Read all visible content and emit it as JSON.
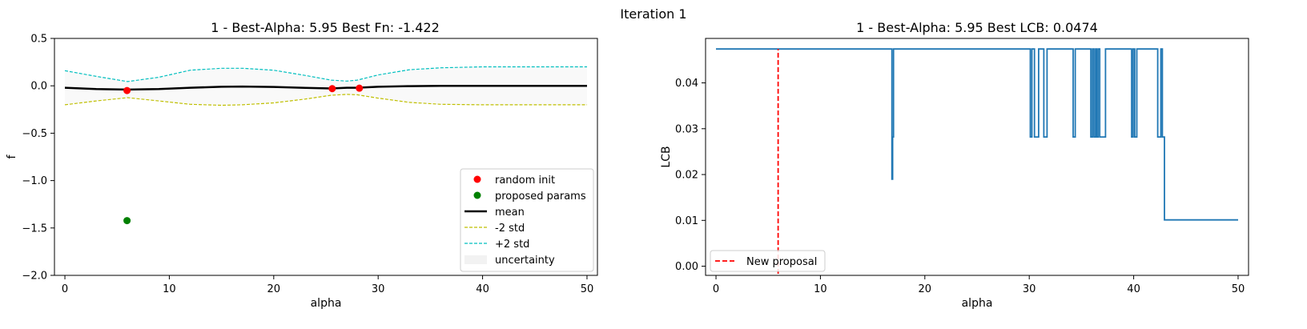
{
  "figure": {
    "suptitle": "Iteration 1"
  },
  "chart_data": [
    {
      "type": "line",
      "title": "1 - Best-Alpha: 5.95 Best Fn: -1.422",
      "xlabel": "alpha",
      "ylabel": "f",
      "xlim": [
        -1,
        51
      ],
      "ylim": [
        -2.0,
        0.5
      ],
      "xticks": [
        0,
        10,
        20,
        30,
        40,
        50
      ],
      "xtick_labels": [
        "0",
        "10",
        "20",
        "30",
        "40",
        "50"
      ],
      "yticks": [
        -2.0,
        -1.5,
        -1.0,
        -0.5,
        0.0,
        0.5
      ],
      "ytick_labels": [
        "−2.0",
        "−1.5",
        "−1.0",
        "−0.5",
        "0.0",
        "0.5"
      ],
      "grid": false,
      "legend_position": "lower right",
      "colors": {
        "random_init": "#ff0000",
        "proposed": "#008000",
        "mean": "#000000",
        "minus2": "#bfbf00",
        "plus2": "#00bfbf",
        "uncertainty": "#f2f2f2"
      },
      "legend": [
        "random init",
        "proposed params",
        "mean",
        "-2 std",
        "+2 std",
        "uncertainty"
      ],
      "series": [
        {
          "name": "mean",
          "kind": "line",
          "x": [
            0,
            3,
            6,
            9,
            12,
            15,
            17,
            20,
            23,
            25.5,
            27,
            28,
            30,
            33,
            36,
            40,
            45,
            50
          ],
          "y": [
            -0.02,
            -0.035,
            -0.04,
            -0.035,
            -0.02,
            -0.01,
            -0.008,
            -0.012,
            -0.022,
            -0.028,
            -0.02,
            -0.02,
            -0.01,
            -0.003,
            0.0,
            0.0,
            0.0,
            0.0
          ]
        },
        {
          "name": "-2 std",
          "kind": "dashed",
          "x": [
            0,
            3,
            6,
            9,
            12,
            15,
            17,
            20,
            23,
            25.5,
            27,
            28,
            30,
            33,
            36,
            40,
            45,
            50
          ],
          "y": [
            -0.2,
            -0.16,
            -0.125,
            -0.16,
            -0.195,
            -0.205,
            -0.2,
            -0.18,
            -0.14,
            -0.1,
            -0.09,
            -0.095,
            -0.13,
            -0.175,
            -0.195,
            -0.2,
            -0.2,
            -0.2
          ]
        },
        {
          "name": "+2 std",
          "kind": "dashed",
          "x": [
            0,
            3,
            6,
            9,
            12,
            15,
            17,
            20,
            23,
            25.5,
            27,
            28,
            30,
            33,
            36,
            40,
            45,
            50
          ],
          "y": [
            0.16,
            0.1,
            0.045,
            0.09,
            0.165,
            0.185,
            0.185,
            0.165,
            0.11,
            0.06,
            0.05,
            0.06,
            0.115,
            0.17,
            0.19,
            0.2,
            0.2,
            0.2
          ]
        },
        {
          "name": "random init",
          "kind": "scatter",
          "x": [
            5.95,
            25.6,
            28.2
          ],
          "y": [
            -0.05,
            -0.03,
            -0.025
          ]
        },
        {
          "name": "proposed params",
          "kind": "scatter",
          "x": [
            5.95
          ],
          "y": [
            -1.422
          ]
        }
      ]
    },
    {
      "type": "line",
      "title": "1 - Best-Alpha: 5.95 Best LCB: 0.0474",
      "xlabel": "alpha",
      "ylabel": "LCB",
      "xlim": [
        -1,
        51
      ],
      "ylim": [
        -0.002,
        0.0497
      ],
      "xticks": [
        0,
        10,
        20,
        30,
        40,
        50
      ],
      "xtick_labels": [
        "0",
        "10",
        "20",
        "30",
        "40",
        "50"
      ],
      "yticks": [
        0.0,
        0.01,
        0.02,
        0.03,
        0.04
      ],
      "ytick_labels": [
        "0.00",
        "0.01",
        "0.02",
        "0.03",
        "0.04"
      ],
      "grid": false,
      "legend_position": "lower left",
      "colors": {
        "lcb": "#1f77b4",
        "proposal": "#ff0000"
      },
      "legend": [
        "New proposal"
      ],
      "proposal_x": 5.95,
      "lcb_steps": {
        "x": [
          0,
          16.85,
          16.85,
          16.92,
          16.92,
          17.0,
          17.0,
          30.1,
          30.1,
          30.25,
          30.25,
          30.5,
          30.5,
          30.9,
          30.9,
          31.4,
          31.4,
          31.7,
          31.7,
          34.2,
          34.2,
          34.4,
          34.4,
          35.9,
          35.9,
          36.05,
          36.05,
          36.2,
          36.2,
          36.35,
          36.35,
          36.45,
          36.45,
          36.6,
          36.6,
          36.75,
          36.75,
          37.3,
          37.3,
          39.8,
          39.8,
          39.95,
          39.95,
          40.1,
          40.1,
          40.3,
          40.3,
          42.3,
          42.3,
          42.6,
          42.6,
          42.75,
          42.75,
          42.95,
          42.95,
          50
        ],
        "y": [
          0.0474,
          0.0474,
          0.019,
          0.019,
          0.0282,
          0.0282,
          0.0474,
          0.0474,
          0.0282,
          0.0282,
          0.0474,
          0.0474,
          0.0282,
          0.0282,
          0.0474,
          0.0474,
          0.0282,
          0.0282,
          0.0474,
          0.0474,
          0.0282,
          0.0282,
          0.0474,
          0.0474,
          0.0282,
          0.0282,
          0.0474,
          0.0474,
          0.0282,
          0.0282,
          0.0474,
          0.0474,
          0.0282,
          0.0282,
          0.0474,
          0.0474,
          0.0282,
          0.0282,
          0.0474,
          0.0474,
          0.0282,
          0.0282,
          0.0474,
          0.0474,
          0.0282,
          0.0282,
          0.0474,
          0.0474,
          0.0282,
          0.0282,
          0.0474,
          0.0474,
          0.0282,
          0.0282,
          0.0101,
          0.0101
        ]
      }
    }
  ]
}
